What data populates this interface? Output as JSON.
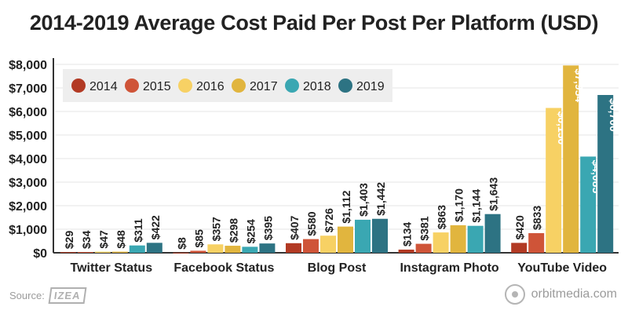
{
  "title": "2014-2019 Average Cost Paid Per Post Per Platform (USD)",
  "source_label": "Source:",
  "source_logo_text": "IZEA",
  "credit": "orbitmedia.com",
  "colors": {
    "2014": "#b23a24",
    "2015": "#cf5438",
    "2016": "#f7d164",
    "2017": "#e1b53e",
    "2018": "#3aa7b2",
    "2019": "#2d7383",
    "axis": "#333333",
    "grid": "#e6e6e6",
    "legend_bg": "#eeeeee"
  },
  "chart_data": {
    "type": "bar",
    "title": "2014-2019 Average Cost Paid Per Post Per Platform (USD)",
    "categories": [
      "Twitter Status",
      "Facebook Status",
      "Blog Post",
      "Instagram Photo",
      "YouTube Video"
    ],
    "series": [
      {
        "name": "2014",
        "values": [
          29,
          8,
          407,
          134,
          420
        ],
        "labels": [
          "$29",
          "$8",
          "$407",
          "$134",
          "$420"
        ]
      },
      {
        "name": "2015",
        "values": [
          34,
          85,
          580,
          381,
          833
        ],
        "labels": [
          "$34",
          "$85",
          "$580",
          "$381",
          "$833"
        ]
      },
      {
        "name": "2016",
        "values": [
          47,
          357,
          726,
          863,
          6150
        ],
        "labels": [
          "$47",
          "$357",
          "$726",
          "$863",
          "$6,150"
        ]
      },
      {
        "name": "2017",
        "values": [
          48,
          298,
          1112,
          1170,
          7954
        ],
        "labels": [
          "$48",
          "$298",
          "$1,112",
          "$1,170",
          "$7,954"
        ]
      },
      {
        "name": "2018",
        "values": [
          311,
          254,
          1403,
          1144,
          4085
        ],
        "labels": [
          "$311",
          "$254",
          "$1,403",
          "$1,144",
          "$4,085"
        ]
      },
      {
        "name": "2019",
        "values": [
          422,
          395,
          1442,
          1643,
          6700
        ],
        "labels": [
          "$422",
          "$395",
          "$1,442",
          "$1,643",
          "$6,700"
        ]
      }
    ],
    "yticks": [
      0,
      1000,
      2000,
      3000,
      4000,
      5000,
      6000,
      7000,
      8000
    ],
    "ytick_labels": [
      "$0",
      "$1,000",
      "$2,000",
      "$3,000",
      "$4,000",
      "$5,000",
      "$6,000",
      "$7,000",
      "$8,000"
    ],
    "ylim": [
      0,
      8000
    ],
    "grid": true,
    "legend_position": "top-left",
    "xlabel": "",
    "ylabel": ""
  }
}
